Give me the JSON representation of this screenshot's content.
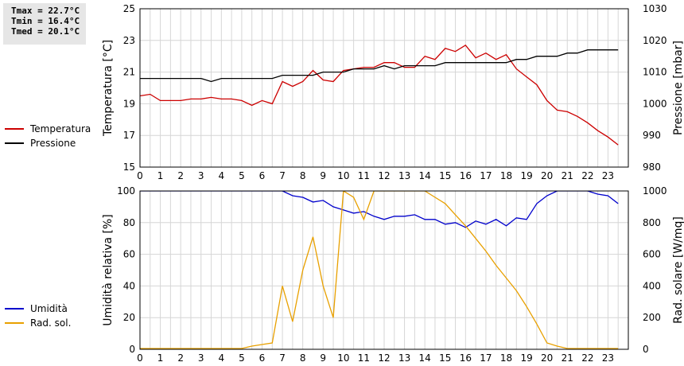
{
  "stats": {
    "tmax": "Tmax = 22.7°C",
    "tmin": "Tmin = 16.4°C",
    "tmed": "Tmed = 20.1°C"
  },
  "chart_data": [
    {
      "type": "line",
      "title": "",
      "x_ticks": [
        0,
        1,
        2,
        3,
        4,
        5,
        6,
        7,
        8,
        9,
        10,
        11,
        12,
        13,
        14,
        15,
        16,
        17,
        18,
        19,
        20,
        21,
        22,
        23
      ],
      "xlim": [
        0,
        24
      ],
      "ylabel": "Temperatura [°C]",
      "ylim": [
        15,
        25
      ],
      "y_ticks": [
        15,
        17,
        19,
        21,
        23,
        25
      ],
      "y2label": "Pressione [mbar]",
      "y2lim": [
        980,
        1030
      ],
      "y2_ticks": [
        980,
        990,
        1000,
        1010,
        1020,
        1030
      ],
      "grid": true,
      "legend_placement": "left",
      "series": [
        {
          "name": "Temperatura",
          "axis": "left",
          "color": "#cc0000",
          "x": [
            0,
            0.5,
            1,
            1.5,
            2,
            2.5,
            3,
            3.5,
            4,
            4.5,
            5,
            5.5,
            6,
            6.5,
            7,
            7.5,
            8,
            8.5,
            9,
            9.5,
            10,
            10.5,
            11,
            11.5,
            12,
            12.5,
            13,
            13.5,
            14,
            14.5,
            15,
            15.5,
            16,
            16.5,
            17,
            17.5,
            18,
            18.5,
            19,
            19.5,
            20,
            20.5,
            21,
            21.5,
            22,
            22.5,
            23,
            23.5
          ],
          "y": [
            19.5,
            19.6,
            19.2,
            19.2,
            19.2,
            19.3,
            19.3,
            19.4,
            19.3,
            19.3,
            19.2,
            18.9,
            19.2,
            19.0,
            20.4,
            20.1,
            20.4,
            21.1,
            20.5,
            20.4,
            21.1,
            21.2,
            21.3,
            21.3,
            21.6,
            21.6,
            21.3,
            21.3,
            22.0,
            21.8,
            22.5,
            22.3,
            22.7,
            21.9,
            22.2,
            21.8,
            22.1,
            21.2,
            20.7,
            20.2,
            19.2,
            18.6,
            18.5,
            18.2,
            17.8,
            17.3,
            16.9,
            16.4
          ]
        },
        {
          "name": "Pressione",
          "axis": "right",
          "color": "#000000",
          "x": [
            0,
            0.5,
            1,
            1.5,
            2,
            2.5,
            3,
            3.5,
            4,
            4.5,
            5,
            5.5,
            6,
            6.5,
            7,
            7.5,
            8,
            8.5,
            9,
            9.5,
            10,
            10.5,
            11,
            11.5,
            12,
            12.5,
            13,
            13.5,
            14,
            14.5,
            15,
            15.5,
            16,
            16.5,
            17,
            17.5,
            18,
            18.5,
            19,
            19.5,
            20,
            20.5,
            21,
            21.5,
            22,
            22.5,
            23,
            23.5
          ],
          "y": [
            1008,
            1008,
            1008,
            1008,
            1008,
            1008,
            1008,
            1007,
            1008,
            1008,
            1008,
            1008,
            1008,
            1008,
            1009,
            1009,
            1009,
            1009,
            1010,
            1010,
            1010,
            1011,
            1011,
            1011,
            1012,
            1011,
            1012,
            1012,
            1012,
            1012,
            1013,
            1013,
            1013,
            1013,
            1013,
            1013,
            1013,
            1014,
            1014,
            1015,
            1015,
            1015,
            1016,
            1016,
            1017,
            1017,
            1017,
            1017
          ]
        }
      ]
    },
    {
      "type": "line",
      "title": "",
      "x_ticks": [
        0,
        1,
        2,
        3,
        4,
        5,
        6,
        7,
        8,
        9,
        10,
        11,
        12,
        13,
        14,
        15,
        16,
        17,
        18,
        19,
        20,
        21,
        22,
        23
      ],
      "xlim": [
        0,
        24
      ],
      "ylabel": "Umidità relativa [%]",
      "ylim": [
        0,
        100
      ],
      "y_ticks": [
        0,
        20,
        40,
        60,
        80,
        100
      ],
      "y2label": "Rad. solare [W/mq]",
      "y2lim": [
        0,
        1000
      ],
      "y2_ticks": [
        0,
        200,
        400,
        600,
        800,
        1000
      ],
      "grid": true,
      "legend_placement": "left",
      "series": [
        {
          "name": "Umidità",
          "axis": "left",
          "color": "#0000cc",
          "x": [
            0,
            0.5,
            1,
            1.5,
            2,
            2.5,
            3,
            3.5,
            4,
            4.5,
            5,
            5.5,
            6,
            6.5,
            7,
            7.5,
            8,
            8.5,
            9,
            9.5,
            10,
            10.5,
            11,
            11.5,
            12,
            12.5,
            13,
            13.5,
            14,
            14.5,
            15,
            15.5,
            16,
            16.5,
            17,
            17.5,
            18,
            18.5,
            19,
            19.5,
            20,
            20.5,
            21,
            21.5,
            22,
            22.5,
            23,
            23.5
          ],
          "y": [
            100,
            100,
            100,
            100,
            100,
            100,
            100,
            100,
            100,
            100,
            100,
            100,
            100,
            100,
            100,
            97,
            96,
            93,
            94,
            90,
            88,
            86,
            87,
            84,
            82,
            84,
            84,
            85,
            82,
            82,
            79,
            80,
            77,
            81,
            79,
            82,
            78,
            83,
            82,
            92,
            97,
            100,
            100,
            100,
            100,
            98,
            97,
            92
          ]
        },
        {
          "name": "Rad. sol.",
          "axis": "right",
          "color": "#e8a000",
          "x": [
            0,
            0.5,
            1,
            1.5,
            2,
            2.5,
            3,
            3.5,
            4,
            4.5,
            5,
            5.5,
            6,
            6.5,
            7,
            7.5,
            8,
            8.5,
            9,
            9.5,
            10,
            10.5,
            11,
            11.5,
            12,
            12.5,
            13,
            13.5,
            14,
            14.5,
            15,
            15.5,
            16,
            16.5,
            17,
            17.5,
            18,
            18.5,
            19,
            19.5,
            20,
            20.5,
            21,
            21.5,
            22,
            22.5,
            23,
            23.5
          ],
          "y": [
            5,
            5,
            5,
            5,
            5,
            5,
            5,
            5,
            5,
            5,
            5,
            20,
            30,
            40,
            400,
            175,
            500,
            710,
            400,
            200,
            1000,
            960,
            820,
            1000,
            1000,
            1000,
            1000,
            1000,
            1000,
            960,
            920,
            850,
            780,
            700,
            620,
            530,
            450,
            370,
            270,
            160,
            40,
            20,
            5,
            5,
            5,
            5,
            5,
            5
          ]
        }
      ]
    }
  ]
}
